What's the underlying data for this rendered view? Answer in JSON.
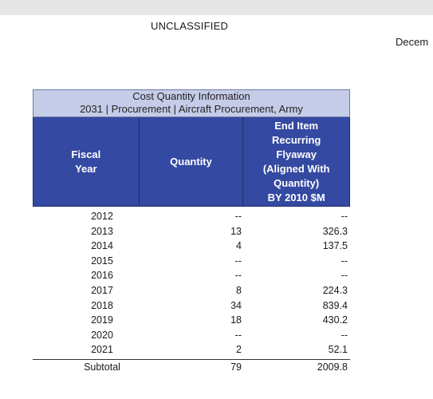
{
  "classification": "UNCLASSIFIED",
  "date_partial": "Decem",
  "table": {
    "title_line1": "Cost Quantity Information",
    "title_line2": "2031 | Procurement | Aircraft Procurement, Army",
    "headers": {
      "fiscal_year": "Fiscal\nYear",
      "quantity": "Quantity",
      "cost": "End Item\nRecurring\nFlyaway\n(Aligned With\nQuantity)\nBY 2010 $M"
    },
    "rows": [
      {
        "year": "2012",
        "quantity": "--",
        "cost": "--"
      },
      {
        "year": "2013",
        "quantity": "13",
        "cost": "326.3"
      },
      {
        "year": "2014",
        "quantity": "4",
        "cost": "137.5"
      },
      {
        "year": "2015",
        "quantity": "--",
        "cost": "--"
      },
      {
        "year": "2016",
        "quantity": "--",
        "cost": "--"
      },
      {
        "year": "2017",
        "quantity": "8",
        "cost": "224.3"
      },
      {
        "year": "2018",
        "quantity": "34",
        "cost": "839.4"
      },
      {
        "year": "2019",
        "quantity": "18",
        "cost": "430.2"
      },
      {
        "year": "2020",
        "quantity": "--",
        "cost": "--"
      },
      {
        "year": "2021",
        "quantity": "2",
        "cost": "52.1"
      }
    ],
    "subtotal": {
      "label": "Subtotal",
      "quantity": "79",
      "cost": "2009.8"
    }
  }
}
